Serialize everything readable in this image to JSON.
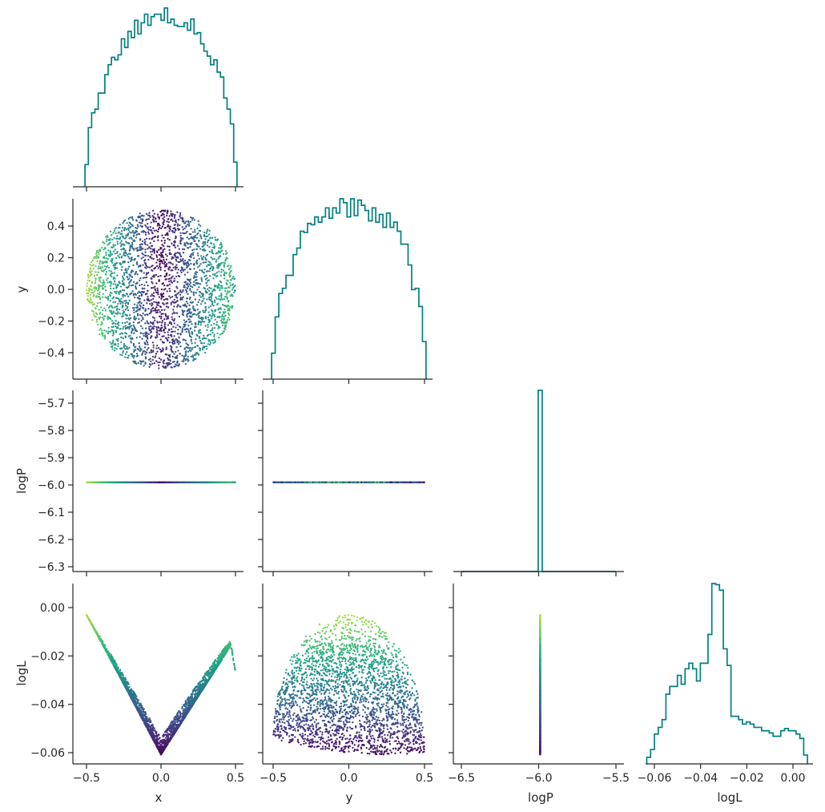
{
  "chart_data": {
    "type": "scatter",
    "layout": "corner",
    "variables": [
      "x",
      "y",
      "logP",
      "logL"
    ],
    "hist_color": "#008080",
    "colormap": "viridis",
    "color_variable": "logL",
    "axis_labels": {
      "x": "x",
      "y": "y",
      "logP": "logP",
      "logL": "logL"
    },
    "ranges": {
      "x": [
        -0.55,
        0.55
      ],
      "y": [
        -0.56,
        0.56
      ],
      "logP": [
        -6.32,
        -5.66
      ],
      "logL": [
        -0.065,
        0.01
      ]
    },
    "x_ticks": {
      "x": [
        "−0.5",
        "0.0",
        "0.5"
      ],
      "y": [
        "−0.5",
        "0.0",
        "0.5"
      ],
      "logP": [
        "−6.5",
        "−6.0",
        "−5.5"
      ],
      "logL": [
        "−0.06",
        "−0.04",
        "−0.02",
        "0.00"
      ]
    },
    "y_ticks": {
      "y": [
        "0.4",
        "0.2",
        "0.0",
        "−0.2",
        "−0.4"
      ],
      "logP": [
        "−5.7",
        "−5.8",
        "−5.9",
        "−6.0",
        "−6.1",
        "−6.2",
        "−6.3"
      ],
      "logL": [
        "0.00",
        "−0.02",
        "−0.04",
        "−0.06"
      ]
    },
    "histograms": {
      "x": {
        "range": [
          -0.51,
          0.51
        ],
        "counts": [
          18,
          48,
          60,
          63,
          76,
          76,
          91,
          99,
          105,
          103,
          107,
          120,
          113,
          126,
          121,
          135,
          124,
          133,
          140,
          131,
          138,
          140,
          140,
          135,
          145,
          133,
          136,
          131,
          130,
          130,
          133,
          127,
          136,
          124,
          125,
          116,
          110,
          106,
          99,
          103,
          93,
          89,
          72,
          63,
          51,
          20
        ]
      },
      "y": {
        "range": [
          -0.51,
          0.51
        ],
        "counts": [
          20,
          48,
          66,
          70,
          80,
          80,
          96,
          101,
          114,
          113,
          120,
          119,
          125,
          121,
          125,
          132,
          124,
          132,
          128,
          139,
          136,
          125,
          139,
          126,
          138,
          134,
          130,
          122,
          132,
          121,
          127,
          117,
          128,
          117,
          121,
          114,
          104,
          104,
          88,
          69,
          70,
          56,
          29
        ]
      },
      "logP": {
        "range": [
          -6.5,
          -5.5
        ],
        "spike_at": -5.99,
        "spike_height": 1.0
      },
      "logL": {
        "range": [
          -0.0633,
          0.0063
        ],
        "counts": [
          6,
          13,
          27,
          33,
          40,
          63,
          70,
          70,
          80,
          72,
          86,
          91,
          86,
          75,
          91,
          91,
          117,
          163,
          162,
          157,
          104,
          89,
          43,
          43,
          40,
          36,
          38,
          36,
          33,
          33,
          30,
          30,
          28,
          25,
          25,
          30,
          32,
          30,
          30,
          27,
          23,
          8
        ]
      }
    },
    "scatter_points_approx": 9000
  }
}
